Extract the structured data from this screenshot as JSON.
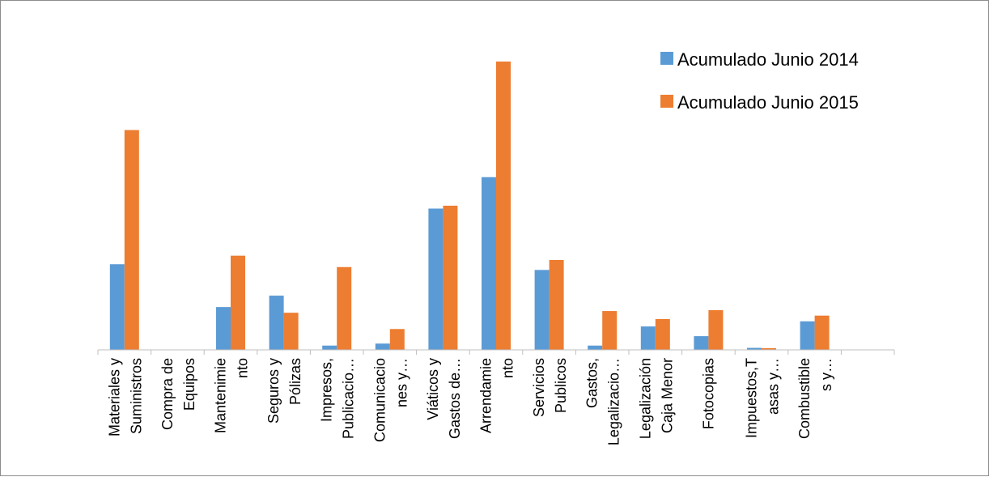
{
  "chart_data": {
    "type": "bar",
    "title": "",
    "xlabel": "",
    "ylabel": "",
    "ylim": [
      0,
      100
    ],
    "grid": false,
    "legend_position": "top-right",
    "categories": [
      [
        "Materiales  y",
        "Suministros"
      ],
      [
        "Compra de",
        "Equipos"
      ],
      [
        "Mantenimie",
        "nto"
      ],
      [
        "Seguros y",
        "Pólizas"
      ],
      [
        "Impresos,",
        "Publicacio…"
      ],
      [
        "Comunicacio",
        "nes y…"
      ],
      [
        "Viáticos y",
        "Gastos de…"
      ],
      [
        "Arrendamie",
        "nto"
      ],
      [
        "Servicios",
        "Publicos"
      ],
      [
        "Gastos,",
        "Legalizacio…"
      ],
      [
        "Legalización",
        "Caja Menor"
      ],
      [
        "Fotocopias"
      ],
      [
        "Impuestos,T",
        "asas y…"
      ],
      [
        "Combustible",
        "s y…"
      ],
      []
    ],
    "series": [
      {
        "name": "Acumulado Junio  2014",
        "color": "#5B9BD5",
        "values": [
          30,
          0,
          15,
          19,
          1.5,
          2.2,
          49.5,
          60.5,
          28,
          1.5,
          8.2,
          4.8,
          0.7,
          10,
          0
        ]
      },
      {
        "name": "Acumulado Junio 2015",
        "color": "#ED7D31",
        "values": [
          77,
          0,
          33,
          13,
          29,
          7.3,
          50.5,
          101,
          31.5,
          13.6,
          10.8,
          13.9,
          0.6,
          12,
          0
        ]
      }
    ]
  }
}
